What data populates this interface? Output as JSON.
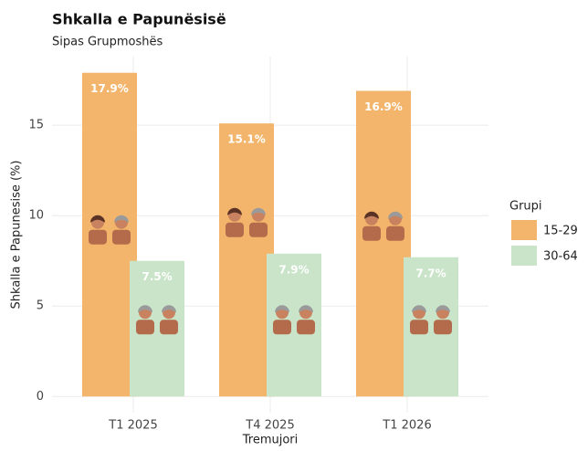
{
  "chart_data": {
    "type": "bar",
    "title": "Shkalla e Papunësisë",
    "subtitle": "Sipas Grupmoshës",
    "x_label": "Tremujori",
    "y_label": "Shkalla e Papunesise (%)",
    "categories": [
      "T1 2025",
      "T4 2025",
      "T1 2026"
    ],
    "series": [
      {
        "name": "15-29",
        "color": "#f2b56b",
        "values": [
          17.9,
          15.1,
          16.9
        ],
        "value_labels": [
          "17.9%",
          "15.1%",
          "16.9%"
        ]
      },
      {
        "name": "30-64",
        "color": "#c9e4c8",
        "values": [
          7.5,
          7.9,
          7.7
        ],
        "value_labels": [
          "7.5%",
          "7.9%",
          "7.7%"
        ]
      }
    ],
    "ylim": [
      -0.895,
      18.795
    ],
    "yticks": [
      0,
      5,
      10,
      15
    ],
    "grid": true,
    "legend_title": "Grupi",
    "legend_position": "right"
  }
}
